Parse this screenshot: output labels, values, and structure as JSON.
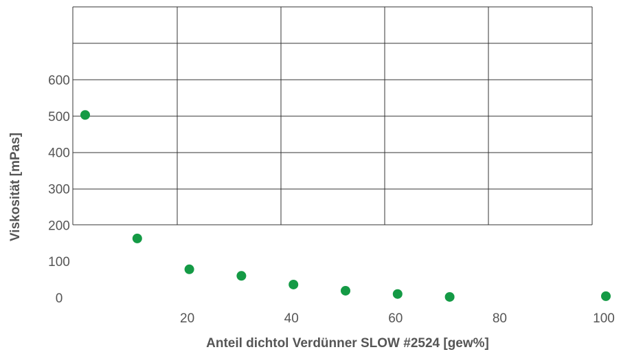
{
  "chart_data": {
    "type": "scatter",
    "title": "",
    "xlabel": "Anteil dichtol Verdünner SLOW #2524 [gew%]",
    "ylabel": "Viskosität [mPas]",
    "xlim": [
      0,
      100
    ],
    "ylim": [
      0,
      600
    ],
    "x_ticks": [
      "20",
      "40",
      "60",
      "80",
      "100"
    ],
    "y_ticks": [
      "0",
      "100",
      "200",
      "300",
      "400",
      "500",
      "600"
    ],
    "grid": true,
    "legend": "none",
    "point_color": "#149a45",
    "series": [
      {
        "x": [
          0,
          10,
          20,
          30,
          40,
          50,
          60,
          70,
          100
        ],
        "y": [
          503,
          163,
          78,
          60,
          36,
          19,
          10,
          2,
          4
        ]
      }
    ]
  }
}
